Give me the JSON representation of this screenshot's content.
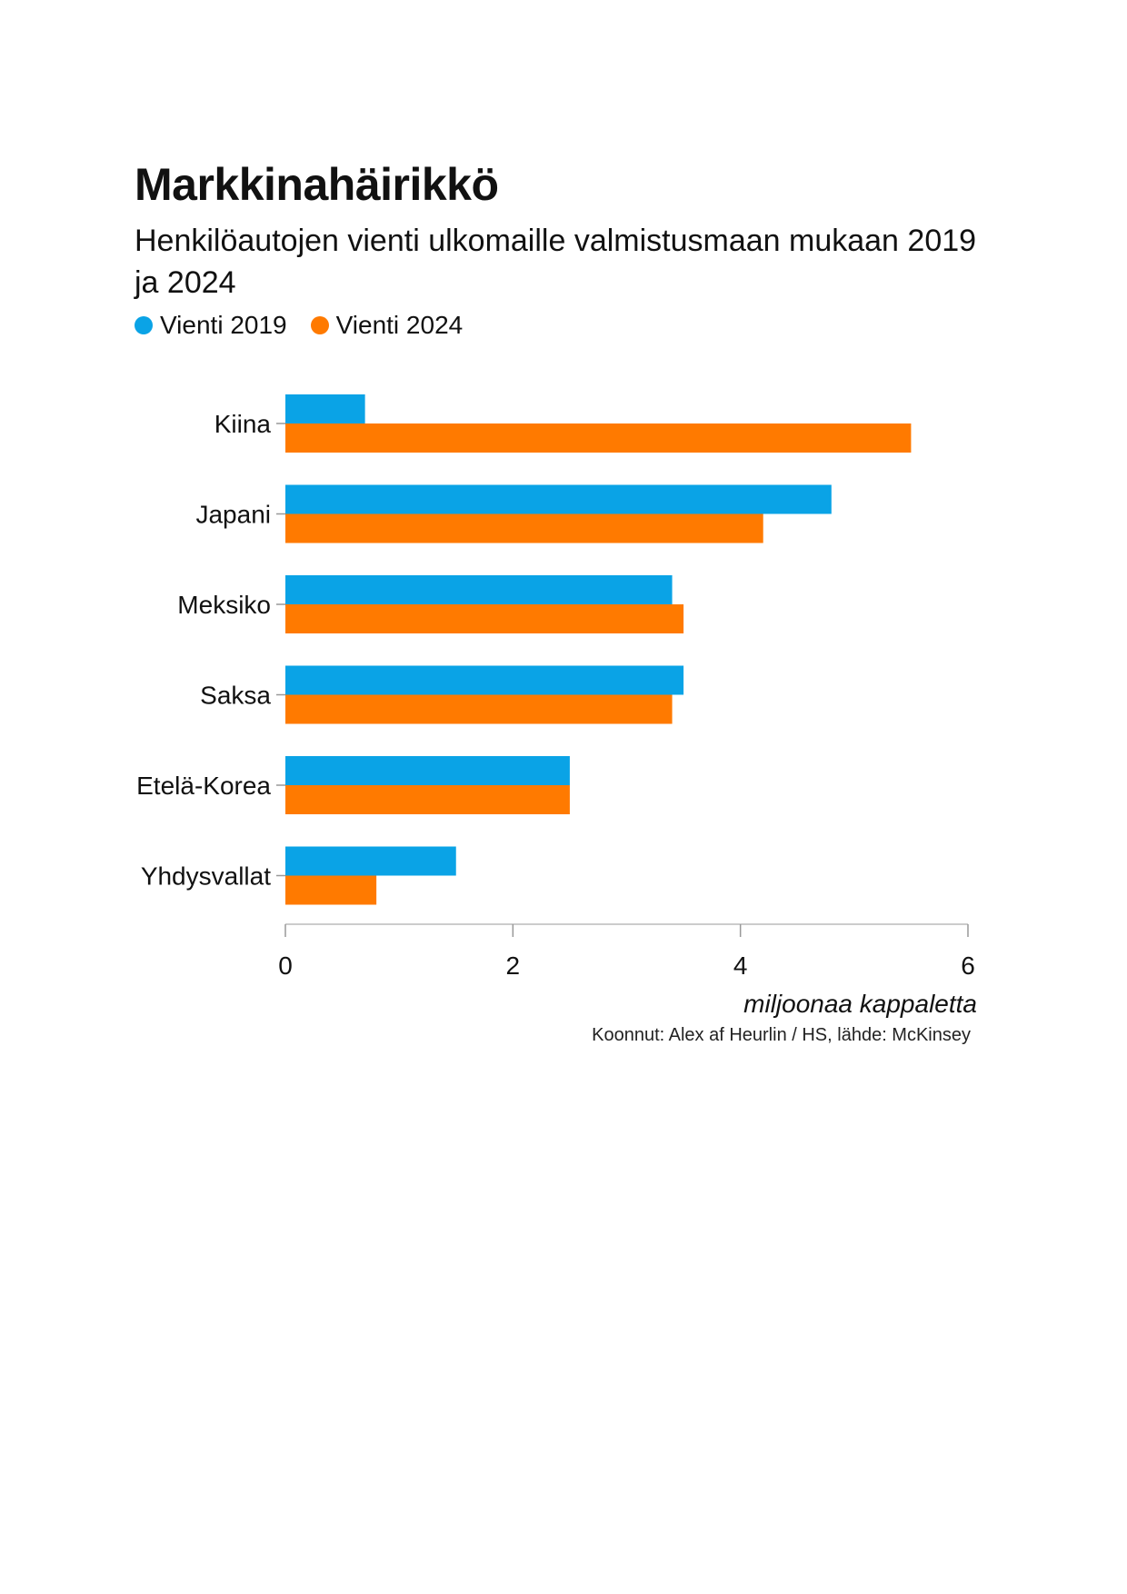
{
  "title": "Markkinahäirikkö",
  "subtitle": "Henkilöautojen vienti ulkomaille valmistusmaan mukaan 2019 ja 2024",
  "legend": [
    {
      "label": "Vienti 2019",
      "color": "#0aa3e6"
    },
    {
      "label": "Vienti 2024",
      "color": "#ff7a00"
    }
  ],
  "source": "Koonnut: Alex af Heurlin / HS, lähde: McKinsey",
  "chart_data": {
    "type": "bar",
    "orientation": "horizontal",
    "categories": [
      "Kiina",
      "Japani",
      "Meksiko",
      "Saksa",
      "Etelä-Korea",
      "Yhdysvallat"
    ],
    "series": [
      {
        "name": "Vienti 2019",
        "color": "#0aa3e6",
        "values": [
          0.7,
          4.8,
          3.4,
          3.5,
          2.5,
          1.5
        ]
      },
      {
        "name": "Vienti 2024",
        "color": "#ff7a00",
        "values": [
          5.5,
          4.2,
          3.5,
          3.4,
          2.5,
          0.8
        ]
      }
    ],
    "xlim": [
      0,
      6
    ],
    "xticks": [
      0,
      2,
      4,
      6
    ],
    "xlabel": "miljoonaa kappaletta",
    "ylabel": "",
    "legend_position": "top-left"
  }
}
